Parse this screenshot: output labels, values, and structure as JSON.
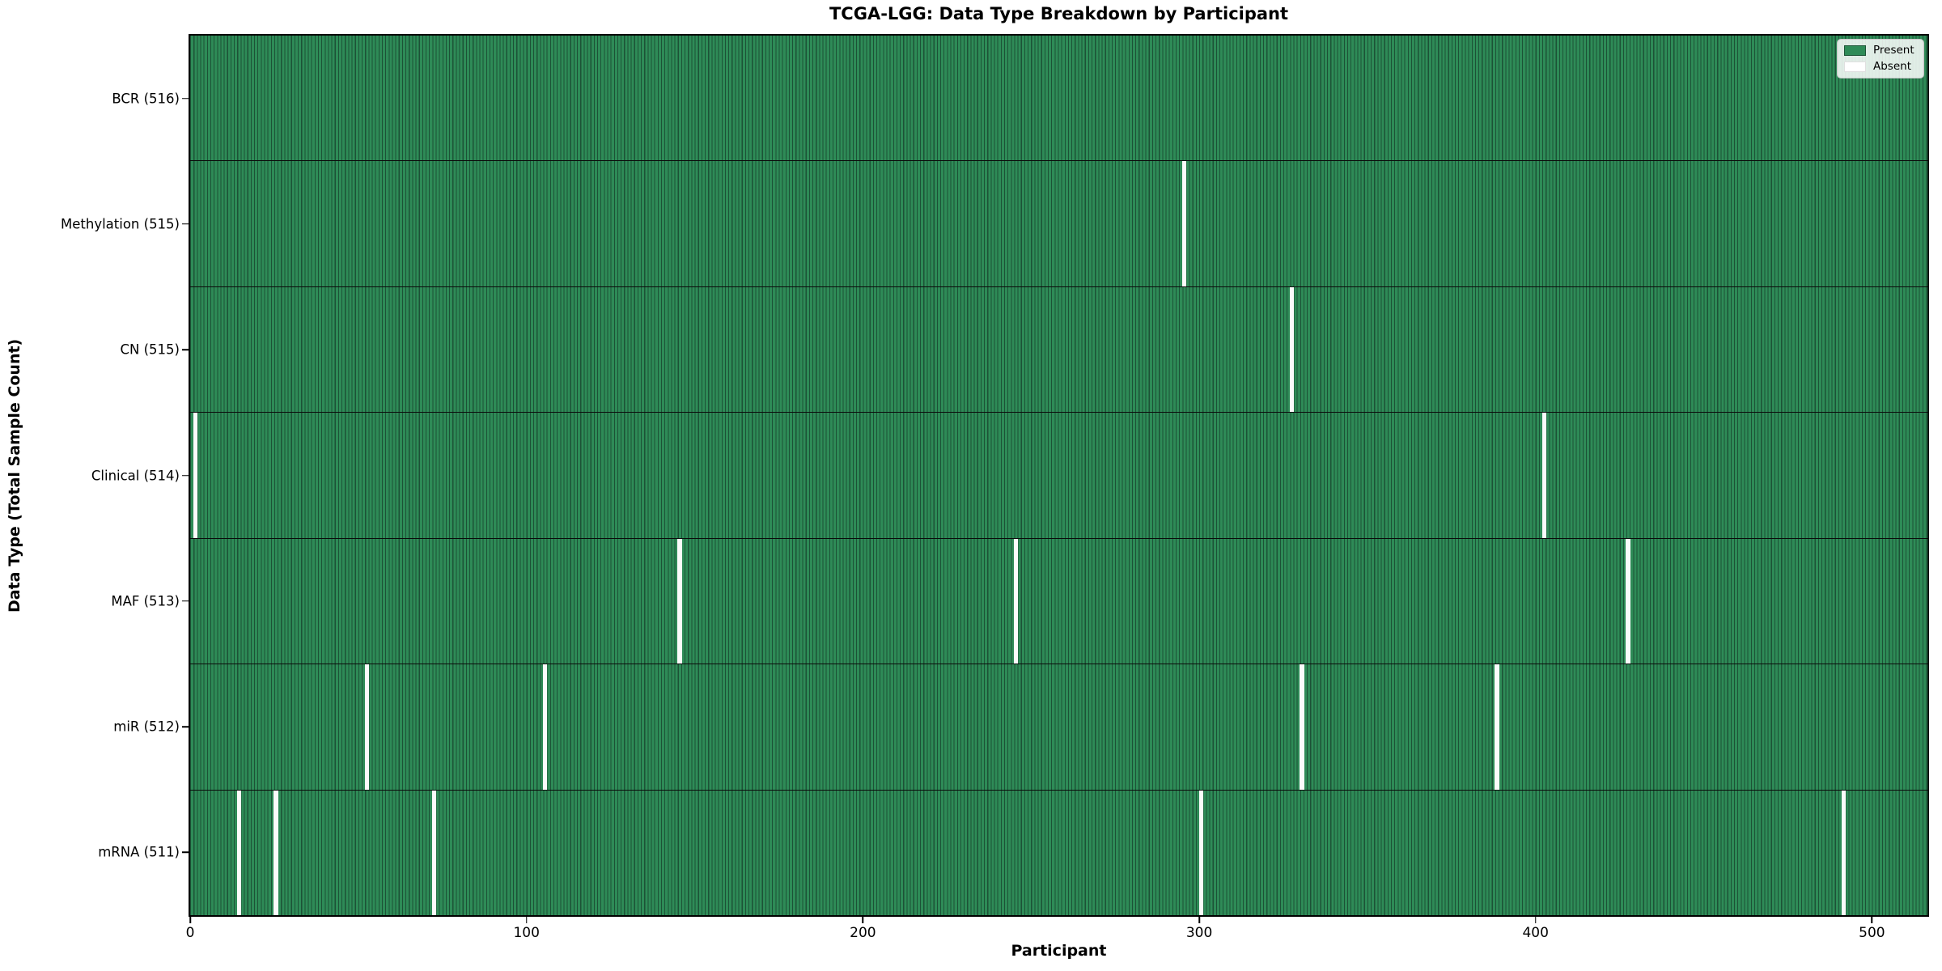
{
  "title": "TCGA-LGG: Data Type Breakdown by Participant",
  "axes": {
    "xlabel": "Participant",
    "ylabel": "Data Type (Total Sample Count)",
    "x_ticks": [
      0,
      100,
      200,
      300,
      400,
      500
    ]
  },
  "legend": {
    "items": [
      {
        "label": "Present",
        "color": "#2E8B57"
      },
      {
        "label": "Absent",
        "color": "#FFFFFF"
      }
    ]
  },
  "colors": {
    "present_fill": "#2E8B57",
    "cell_edge": "#1C5236",
    "absent_fill": "#FBFBFB",
    "axis_line": "#000000",
    "background": "#FFFFFF"
  },
  "chart_data": {
    "type": "heatmap",
    "title": "TCGA-LGG: Data Type Breakdown by Participant",
    "xlabel": "Participant",
    "ylabel": "Data Type (Total Sample Count)",
    "legend_entries": [
      "Present",
      "Absent"
    ],
    "legend_position": "upper right",
    "n_participants": 516,
    "x_range": [
      0,
      516
    ],
    "x_ticks": [
      0,
      100,
      200,
      300,
      400,
      500
    ],
    "cell_values": "present=1 (green) for every participant except listed absent indices (white)",
    "rows": [
      {
        "label": "BCR (516)",
        "name": "BCR",
        "total": 516,
        "absent_participants": []
      },
      {
        "label": "Methylation (515)",
        "name": "Methylation",
        "total": 515,
        "absent_participants": [
          295
        ]
      },
      {
        "label": "CN (515)",
        "name": "CN",
        "total": 515,
        "absent_participants": [
          327
        ]
      },
      {
        "label": "Clinical (514)",
        "name": "Clinical",
        "total": 514,
        "absent_participants": [
          1,
          402
        ]
      },
      {
        "label": "MAF (513)",
        "name": "MAF",
        "total": 513,
        "absent_participants": [
          145,
          245,
          427
        ]
      },
      {
        "label": "miR (512)",
        "name": "miR",
        "total": 512,
        "absent_participants": [
          52,
          105,
          330,
          388
        ]
      },
      {
        "label": "mRNA (511)",
        "name": "mRNA",
        "total": 511,
        "absent_participants": [
          14,
          25,
          72,
          300,
          491
        ]
      }
    ]
  }
}
